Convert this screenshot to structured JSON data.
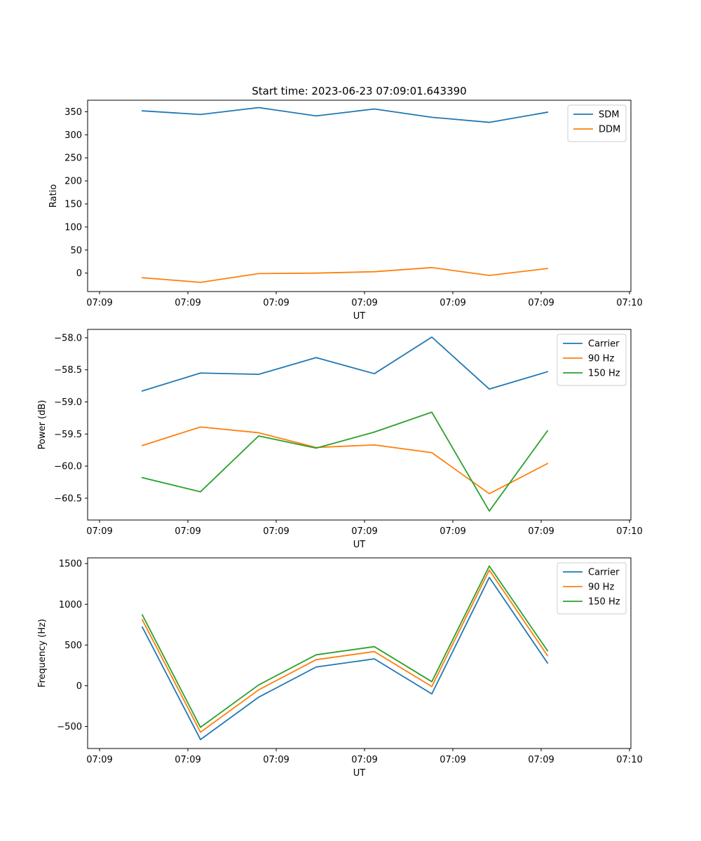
{
  "chart_data": [
    {
      "type": "line",
      "title": "Start time: 2023-06-23 07:09:01.643390",
      "xlabel": "UT",
      "ylabel": "Ratio",
      "x_tick_labels": [
        "07:09",
        "07:09",
        "07:09",
        "07:09",
        "07:09",
        "07:09",
        "07:09"
      ],
      "x_last_tick_label": "07:10",
      "y_ticks": [
        0,
        50,
        100,
        150,
        200,
        250,
        300,
        350
      ],
      "y_tick_labels": [
        "0",
        "50",
        "100",
        "150",
        "200",
        "250",
        "300",
        "350"
      ],
      "ylim": [
        -40,
        375
      ],
      "legend": "top-right",
      "grid": false,
      "series": [
        {
          "name": "SDM",
          "color": "#1f77b4",
          "values": [
            352,
            344,
            359,
            341,
            356,
            338,
            327,
            349
          ]
        },
        {
          "name": "DDM",
          "color": "#ff7f0e",
          "values": [
            -10,
            -20,
            -1,
            0,
            3,
            12,
            -5,
            10
          ]
        }
      ]
    },
    {
      "type": "line",
      "title": "",
      "xlabel": "UT",
      "ylabel": "Power (dB)",
      "x_tick_labels": [
        "07:09",
        "07:09",
        "07:09",
        "07:09",
        "07:09",
        "07:09",
        "07:09"
      ],
      "x_last_tick_label": "07:10",
      "y_ticks": [
        -60.5,
        -60.0,
        -59.5,
        -59.0,
        -58.5,
        -58.0
      ],
      "y_tick_labels": [
        "−60.5",
        "−60.0",
        "−59.5",
        "−59.0",
        "−58.5",
        "−58.0"
      ],
      "ylim": [
        -60.84,
        -57.87
      ],
      "legend": "top-right",
      "grid": false,
      "series": [
        {
          "name": "Carrier",
          "color": "#1f77b4",
          "values": [
            -58.83,
            -58.55,
            -58.57,
            -58.31,
            -58.56,
            -57.99,
            -58.8,
            -58.53
          ]
        },
        {
          "name": "90 Hz",
          "color": "#ff7f0e",
          "values": [
            -59.68,
            -59.39,
            -59.48,
            -59.71,
            -59.67,
            -59.79,
            -60.43,
            -59.96
          ]
        },
        {
          "name": "150 Hz",
          "color": "#2ca02c",
          "values": [
            -60.18,
            -60.4,
            -59.53,
            -59.72,
            -59.47,
            -59.16,
            -60.7,
            -59.45
          ]
        }
      ]
    },
    {
      "type": "line",
      "title": "",
      "xlabel": "UT",
      "ylabel": "Frequency (Hz)",
      "x_tick_labels": [
        "07:09",
        "07:09",
        "07:09",
        "07:09",
        "07:09",
        "07:09",
        "07:09"
      ],
      "x_last_tick_label": "07:10",
      "y_ticks": [
        -500,
        0,
        500,
        1000,
        1500
      ],
      "y_tick_labels": [
        "−500",
        "0",
        "500",
        "1000",
        "1500"
      ],
      "ylim": [
        -770,
        1570
      ],
      "legend": "top-right",
      "grid": false,
      "series": [
        {
          "name": "Carrier",
          "color": "#1f77b4",
          "values": [
            720,
            -660,
            -140,
            230,
            330,
            -100,
            1330,
            280
          ]
        },
        {
          "name": "90 Hz",
          "color": "#ff7f0e",
          "values": [
            810,
            -570,
            -50,
            320,
            420,
            -10,
            1420,
            370
          ]
        },
        {
          "name": "150 Hz",
          "color": "#2ca02c",
          "values": [
            870,
            -510,
            10,
            380,
            480,
            50,
            1470,
            430
          ]
        }
      ]
    }
  ]
}
